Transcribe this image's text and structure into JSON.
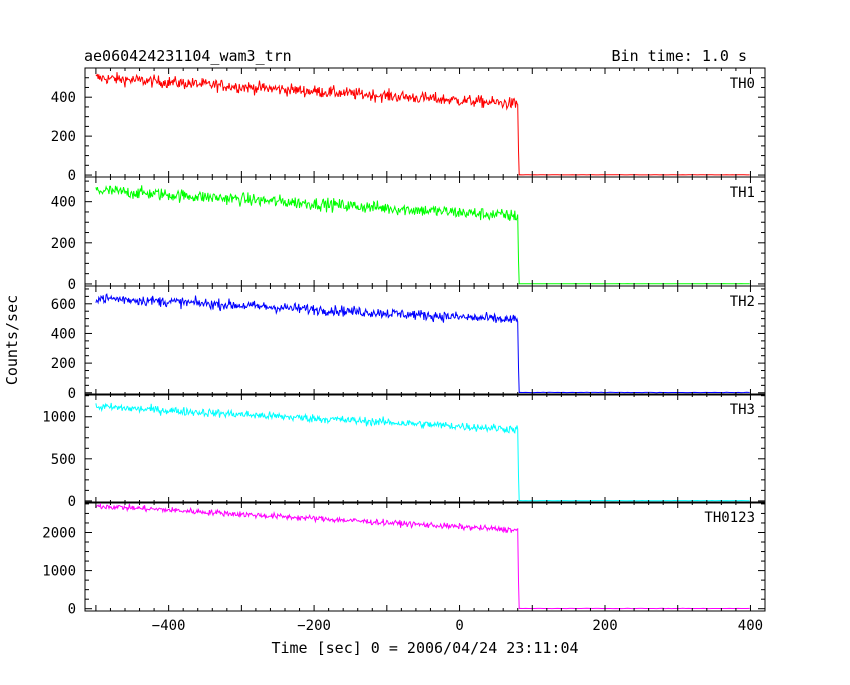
{
  "chart_data": {
    "type": "line",
    "title": "ae060424231104_wam3_trn",
    "subtitle": "Bin time: 1.0 s",
    "xlabel": "Time [sec] 0 = 2006/04/24 23:11:04",
    "ylabel": "Counts/sec",
    "xlim": [
      -515,
      420
    ],
    "xticks": [
      -400,
      -200,
      0,
      200,
      400
    ],
    "xtick_labels": [
      "−400",
      "−200",
      "0",
      "200",
      "400"
    ],
    "grid": false,
    "drop_time": 80,
    "x_start": -500,
    "x_end": 400,
    "series": [
      {
        "name": "TH0",
        "color": "#ff0000",
        "ylim": [
          -10,
          550
        ],
        "yticks": [
          0,
          200,
          400
        ],
        "ytick_labels": [
          "0",
          "200",
          "400"
        ],
        "start_value": 500,
        "end_value": 365,
        "noise": 22,
        "post_value": 1
      },
      {
        "name": "TH1",
        "color": "#00ff00",
        "ylim": [
          -10,
          520
        ],
        "yticks": [
          0,
          200,
          400
        ],
        "ytick_labels": [
          "0",
          "200",
          "400"
        ],
        "start_value": 455,
        "end_value": 330,
        "noise": 22,
        "post_value": 1
      },
      {
        "name": "TH2",
        "color": "#0000ff",
        "ylim": [
          -15,
          720
        ],
        "yticks": [
          0,
          200,
          400,
          600
        ],
        "ytick_labels": [
          "0",
          "200",
          "400",
          "600"
        ],
        "start_value": 640,
        "end_value": 490,
        "noise": 25,
        "post_value": 2
      },
      {
        "name": "TH3",
        "color": "#00ffff",
        "ylim": [
          -25,
          1270
        ],
        "yticks": [
          0,
          500,
          1000
        ],
        "ytick_labels": [
          "0",
          "500",
          "1000"
        ],
        "start_value": 1120,
        "end_value": 850,
        "noise": 35,
        "post_value": 3
      },
      {
        "name": "TH0123",
        "color": "#ff00ff",
        "ylim": [
          -60,
          2800
        ],
        "yticks": [
          0,
          1000,
          2000
        ],
        "ytick_labels": [
          "0",
          "1000",
          "2000"
        ],
        "start_value": 2700,
        "end_value": 2060,
        "noise": 55,
        "post_value": 6
      }
    ]
  }
}
